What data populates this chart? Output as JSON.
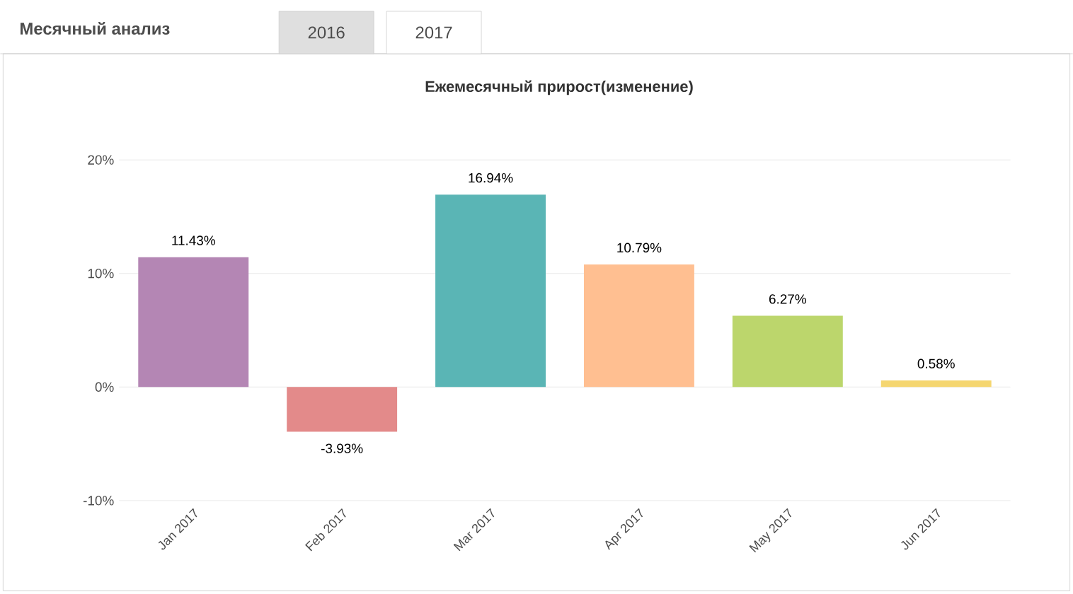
{
  "chart_data": {
    "type": "bar",
    "title": "Ежемесячный прирост(изменение)",
    "annotations": [
      "Месячный анализ",
      "2016",
      "2017"
    ],
    "categories": [
      "Jan 2017",
      "Feb 2017",
      "Mar 2017",
      "Apr 2017",
      "May 2017",
      "Jun 2017"
    ],
    "values": [
      11.43,
      -3.93,
      16.94,
      10.79,
      6.27,
      0.58
    ],
    "value_labels": [
      "11.43%",
      "-3.93%",
      "16.94%",
      "10.79%",
      "6.27%",
      "0.58%"
    ],
    "colors": [
      "#b486b4",
      "#e38a8a",
      "#5ab5b5",
      "#ffbf91",
      "#bcd66c",
      "#f5d670"
    ],
    "ylim": [
      -10,
      20
    ],
    "yticks": [
      {
        "value": -10,
        "label": "-10%"
      },
      {
        "value": 0,
        "label": "0%"
      },
      {
        "value": 10,
        "label": "10%"
      },
      {
        "value": 20,
        "label": "20%"
      }
    ],
    "grid": "y"
  }
}
